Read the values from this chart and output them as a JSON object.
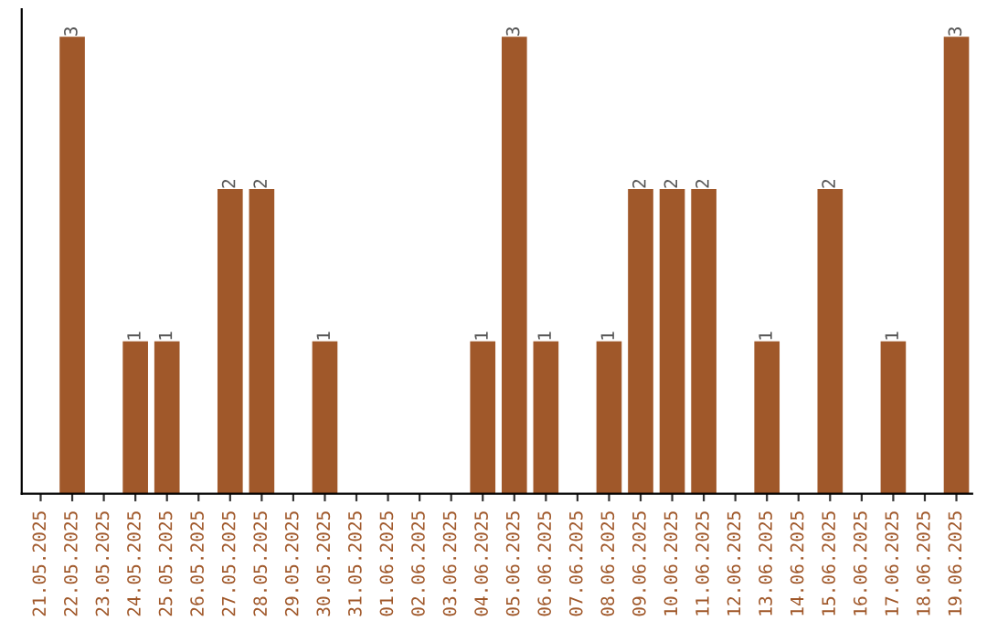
{
  "chart_data": {
    "type": "bar",
    "categories": [
      "21.05.2025",
      "22.05.2025",
      "23.05.2025",
      "24.05.2025",
      "25.05.2025",
      "26.05.2025",
      "27.05.2025",
      "28.05.2025",
      "29.05.2025",
      "30.05.2025",
      "31.05.2025",
      "01.06.2025",
      "02.06.2025",
      "03.06.2025",
      "04.06.2025",
      "05.06.2025",
      "06.06.2025",
      "07.06.2025",
      "08.06.2025",
      "09.06.2025",
      "10.06.2025",
      "11.06.2025",
      "12.06.2025",
      "13.06.2025",
      "14.06.2025",
      "15.06.2025",
      "16.06.2025",
      "17.06.2025",
      "18.06.2025",
      "19.06.2025"
    ],
    "values": [
      0,
      3,
      0,
      1,
      1,
      0,
      2,
      2,
      0,
      1,
      0,
      0,
      0,
      0,
      1,
      3,
      1,
      0,
      1,
      2,
      2,
      2,
      0,
      1,
      0,
      2,
      0,
      1,
      0,
      3
    ],
    "value_labels": [
      null,
      "3",
      null,
      "1",
      "1",
      null,
      "2",
      "2",
      null,
      "1",
      null,
      null,
      null,
      null,
      "1",
      "3",
      "1",
      null,
      "1",
      "2",
      "2",
      "2",
      null,
      "1",
      null,
      "2",
      null,
      "1",
      null,
      "3"
    ],
    "color": "#a0582a",
    "tick_labels": "x",
    "grid": false,
    "legend": false
  }
}
